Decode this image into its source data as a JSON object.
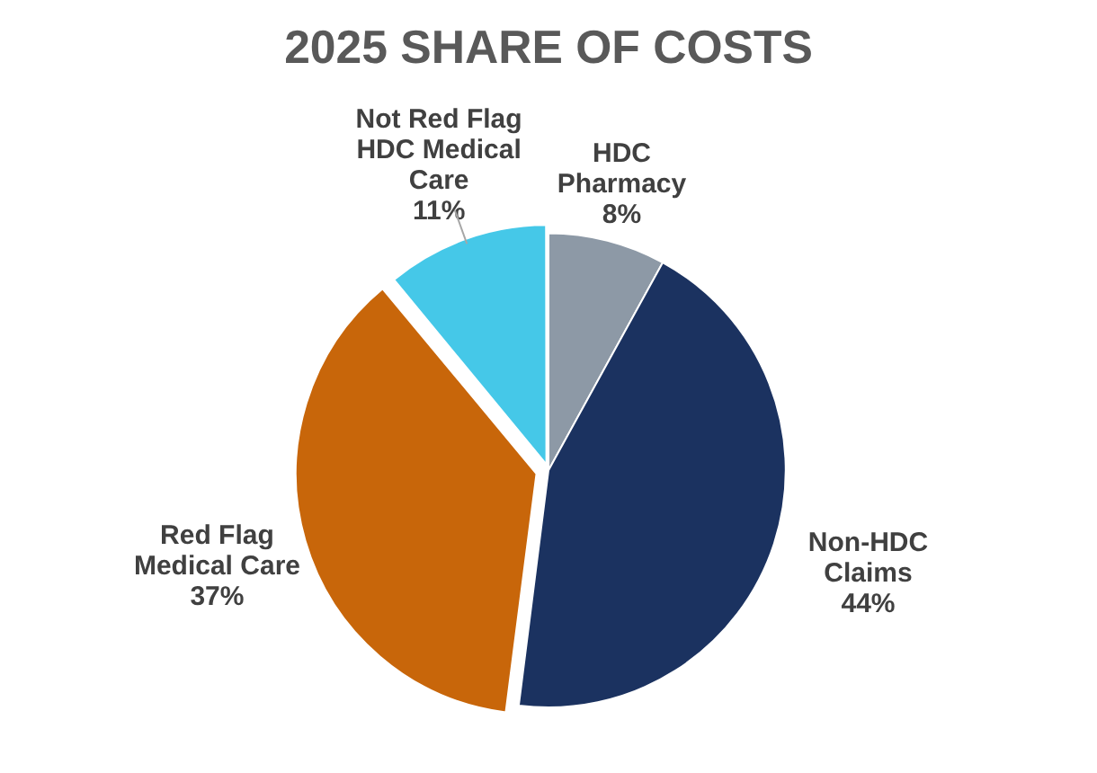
{
  "chart_data": {
    "type": "pie",
    "title": "2025 SHARE OF COSTS",
    "categories": [
      "HDC Pharmacy",
      "Non-HDC Claims",
      "Red Flag Medical Care",
      "Not Red Flag HDC Medical Care"
    ],
    "values": [
      8,
      44,
      37,
      11
    ],
    "value_labels": [
      "8%",
      "44%",
      "37%",
      "11%"
    ],
    "colors": [
      "#8d99a6",
      "#1b3260",
      "#c8660a",
      "#45c8e8"
    ],
    "legend": false
  }
}
